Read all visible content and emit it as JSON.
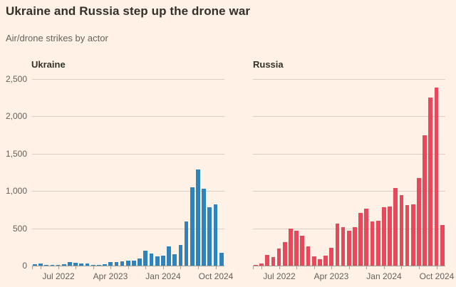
{
  "header": {
    "title": "Ukraine and Russia step up the drone war",
    "subtitle": "Air/drone strikes by actor"
  },
  "colors": {
    "background": "#fff1e5",
    "title_text": "#333029",
    "muted_text": "#66605b",
    "grid": "#d8cec4",
    "axis": "#a59e96",
    "ukraine_bar": "#2d84bd",
    "russia_bar": "#e9485a"
  },
  "chart_data": [
    {
      "type": "bar",
      "name": "Ukraine",
      "color_key": "ukraine_bar",
      "ylim": [
        0,
        2500
      ],
      "y_ticks": [
        0,
        500,
        1000,
        1500,
        2000,
        2500
      ],
      "show_y_labels": true,
      "grid": true,
      "months": [
        "Mar 2022",
        "Apr 2022",
        "May 2022",
        "Jun 2022",
        "Jul 2022",
        "Aug 2022",
        "Sep 2022",
        "Oct 2022",
        "Nov 2022",
        "Dec 2022",
        "Jan 2023",
        "Feb 2023",
        "Mar 2023",
        "Apr 2023",
        "May 2023",
        "Jun 2023",
        "Jul 2023",
        "Aug 2023",
        "Sep 2023",
        "Oct 2023",
        "Nov 2023",
        "Dec 2023",
        "Jan 2024",
        "Feb 2024",
        "Mar 2024",
        "Apr 2024",
        "May 2024",
        "Jun 2024",
        "Jul 2024",
        "Aug 2024",
        "Sep 2024",
        "Oct 2024",
        "Nov 2024"
      ],
      "values": [
        15,
        25,
        12,
        10,
        13,
        19,
        50,
        40,
        25,
        29,
        6,
        10,
        16,
        44,
        51,
        57,
        63,
        70,
        98,
        200,
        158,
        120,
        136,
        255,
        155,
        280,
        590,
        1050,
        1290,
        1030,
        780,
        820,
        175
      ],
      "x_axis": {
        "tick_months": [
          "Apr 2022",
          "Jul 2022",
          "Oct 2022",
          "Jan 2023",
          "Apr 2023",
          "Jul 2023",
          "Oct 2023",
          "Jan 2024",
          "Apr 2024",
          "Jul 2024",
          "Oct 2024"
        ],
        "labeled_months": [
          "Jul 2022",
          "Apr 2023",
          "Jan 2024",
          "Oct 2024"
        ]
      }
    },
    {
      "type": "bar",
      "name": "Russia",
      "color_key": "russia_bar",
      "ylim": [
        0,
        2500
      ],
      "y_ticks": [
        0,
        500,
        1000,
        1500,
        2000,
        2500
      ],
      "show_y_labels": false,
      "grid": true,
      "months": [
        "Mar 2022",
        "Apr 2022",
        "May 2022",
        "Jun 2022",
        "Jul 2022",
        "Aug 2022",
        "Sep 2022",
        "Oct 2022",
        "Nov 2022",
        "Dec 2022",
        "Jan 2023",
        "Feb 2023",
        "Mar 2023",
        "Apr 2023",
        "May 2023",
        "Jun 2023",
        "Jul 2023",
        "Aug 2023",
        "Sep 2023",
        "Oct 2023",
        "Nov 2023",
        "Dec 2023",
        "Jan 2024",
        "Feb 2024",
        "Mar 2024",
        "Apr 2024",
        "May 2024",
        "Jun 2024",
        "Jul 2024",
        "Aug 2024",
        "Sep 2024",
        "Oct 2024",
        "Nov 2024"
      ],
      "values": [
        10,
        30,
        140,
        115,
        230,
        315,
        500,
        470,
        400,
        260,
        120,
        85,
        130,
        240,
        565,
        520,
        470,
        520,
        710,
        765,
        590,
        605,
        780,
        790,
        1040,
        940,
        810,
        820,
        1175,
        1750,
        2250,
        2385,
        540
      ],
      "x_axis": {
        "tick_months": [
          "Apr 2022",
          "Jul 2022",
          "Oct 2022",
          "Jan 2023",
          "Apr 2023",
          "Jul 2023",
          "Oct 2023",
          "Jan 2024",
          "Apr 2024",
          "Jul 2024",
          "Oct 2024"
        ],
        "labeled_months": [
          "Jul 2022",
          "Apr 2023",
          "Jan 2024",
          "Oct 2024"
        ]
      }
    }
  ]
}
